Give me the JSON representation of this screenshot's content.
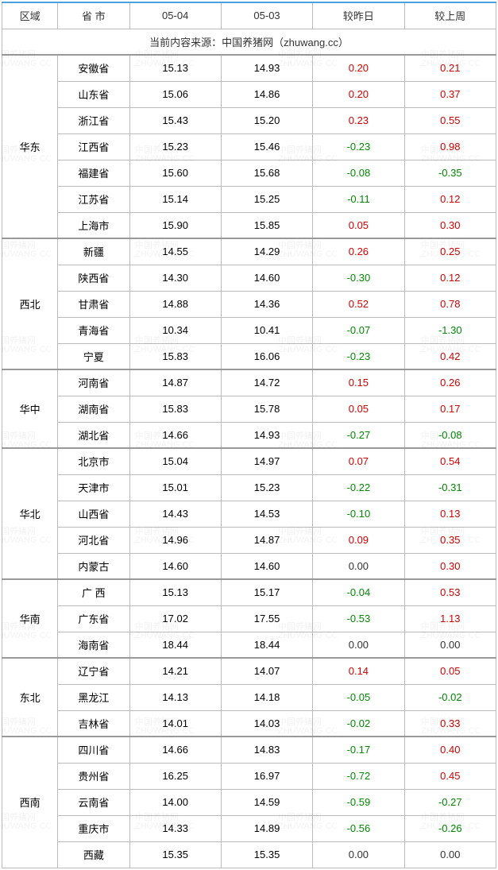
{
  "headers": {
    "region": "区域",
    "province": "省 市",
    "col1": "05-04",
    "col2": "05-03",
    "vs_yesterday": "较昨日",
    "vs_lastweek": "较上周"
  },
  "source_line": "当前内容来源：中国养猪网（zhuwang.cc）",
  "watermark_text_cn": "中国养猪网",
  "watermark_text_en": "ZHUWANG.CC",
  "col_widths": [
    "70px",
    "90px",
    "115px",
    "115px",
    "115px",
    "115px"
  ],
  "color_pos": "#d40000",
  "color_neg": "#008800",
  "color_zero": "#333333",
  "border_strong": "#999999",
  "header_accent": "#4aa3df",
  "regions": [
    {
      "name": "华东",
      "rows": [
        {
          "prov": "安徽省",
          "c1": "15.13",
          "c2": "14.93",
          "d1": "0.20",
          "d2": "0.21"
        },
        {
          "prov": "山东省",
          "c1": "15.06",
          "c2": "14.86",
          "d1": "0.20",
          "d2": "0.37"
        },
        {
          "prov": "浙江省",
          "c1": "15.43",
          "c2": "15.20",
          "d1": "0.23",
          "d2": "0.55"
        },
        {
          "prov": "江西省",
          "c1": "15.23",
          "c2": "15.46",
          "d1": "-0.23",
          "d2": "0.98"
        },
        {
          "prov": "福建省",
          "c1": "15.60",
          "c2": "15.68",
          "d1": "-0.08",
          "d2": "-0.35"
        },
        {
          "prov": "江苏省",
          "c1": "15.14",
          "c2": "15.25",
          "d1": "-0.11",
          "d2": "0.12"
        },
        {
          "prov": "上海市",
          "c1": "15.90",
          "c2": "15.85",
          "d1": "0.05",
          "d2": "0.30"
        }
      ]
    },
    {
      "name": "西北",
      "rows": [
        {
          "prov": "新疆",
          "c1": "14.55",
          "c2": "14.29",
          "d1": "0.26",
          "d2": "0.25"
        },
        {
          "prov": "陕西省",
          "c1": "14.30",
          "c2": "14.60",
          "d1": "-0.30",
          "d2": "0.12"
        },
        {
          "prov": "甘肃省",
          "c1": "14.88",
          "c2": "14.36",
          "d1": "0.52",
          "d2": "0.78"
        },
        {
          "prov": "青海省",
          "c1": "10.34",
          "c2": "10.41",
          "d1": "-0.07",
          "d2": "-1.30"
        },
        {
          "prov": "宁夏",
          "c1": "15.83",
          "c2": "16.06",
          "d1": "-0.23",
          "d2": "0.42"
        }
      ]
    },
    {
      "name": "华中",
      "rows": [
        {
          "prov": "河南省",
          "c1": "14.87",
          "c2": "14.72",
          "d1": "0.15",
          "d2": "0.26"
        },
        {
          "prov": "湖南省",
          "c1": "15.83",
          "c2": "15.78",
          "d1": "0.05",
          "d2": "0.17"
        },
        {
          "prov": "湖北省",
          "c1": "14.66",
          "c2": "14.93",
          "d1": "-0.27",
          "d2": "-0.08"
        }
      ]
    },
    {
      "name": "华北",
      "rows": [
        {
          "prov": "北京市",
          "c1": "15.04",
          "c2": "14.97",
          "d1": "0.07",
          "d2": "0.54"
        },
        {
          "prov": "天津市",
          "c1": "15.01",
          "c2": "15.23",
          "d1": "-0.22",
          "d2": "-0.31"
        },
        {
          "prov": "山西省",
          "c1": "14.43",
          "c2": "14.53",
          "d1": "-0.10",
          "d2": "0.13"
        },
        {
          "prov": "河北省",
          "c1": "14.96",
          "c2": "14.87",
          "d1": "0.09",
          "d2": "0.35"
        },
        {
          "prov": "内蒙古",
          "c1": "14.60",
          "c2": "14.60",
          "d1": "0.00",
          "d2": "0.30"
        }
      ]
    },
    {
      "name": "华南",
      "rows": [
        {
          "prov": "广 西",
          "c1": "15.13",
          "c2": "15.17",
          "d1": "-0.04",
          "d2": "0.53"
        },
        {
          "prov": "广东省",
          "c1": "17.02",
          "c2": "17.55",
          "d1": "-0.53",
          "d2": "1.13"
        },
        {
          "prov": "海南省",
          "c1": "18.44",
          "c2": "18.44",
          "d1": "0.00",
          "d2": "0.00"
        }
      ]
    },
    {
      "name": "东北",
      "rows": [
        {
          "prov": "辽宁省",
          "c1": "14.21",
          "c2": "14.07",
          "d1": "0.14",
          "d2": "0.05"
        },
        {
          "prov": "黑龙江",
          "c1": "14.13",
          "c2": "14.18",
          "d1": "-0.05",
          "d2": "-0.02"
        },
        {
          "prov": "吉林省",
          "c1": "14.01",
          "c2": "14.03",
          "d1": "-0.02",
          "d2": "0.33"
        }
      ]
    },
    {
      "name": "西南",
      "rows": [
        {
          "prov": "四川省",
          "c1": "14.66",
          "c2": "14.83",
          "d1": "-0.17",
          "d2": "0.40"
        },
        {
          "prov": "贵州省",
          "c1": "16.25",
          "c2": "16.97",
          "d1": "-0.72",
          "d2": "0.45"
        },
        {
          "prov": "云南省",
          "c1": "14.00",
          "c2": "14.59",
          "d1": "-0.59",
          "d2": "-0.27"
        },
        {
          "prov": "重庆市",
          "c1": "14.33",
          "c2": "14.89",
          "d1": "-0.56",
          "d2": "-0.26"
        },
        {
          "prov": "西藏",
          "c1": "15.35",
          "c2": "15.35",
          "d1": "0.00",
          "d2": "0.00"
        }
      ]
    }
  ]
}
